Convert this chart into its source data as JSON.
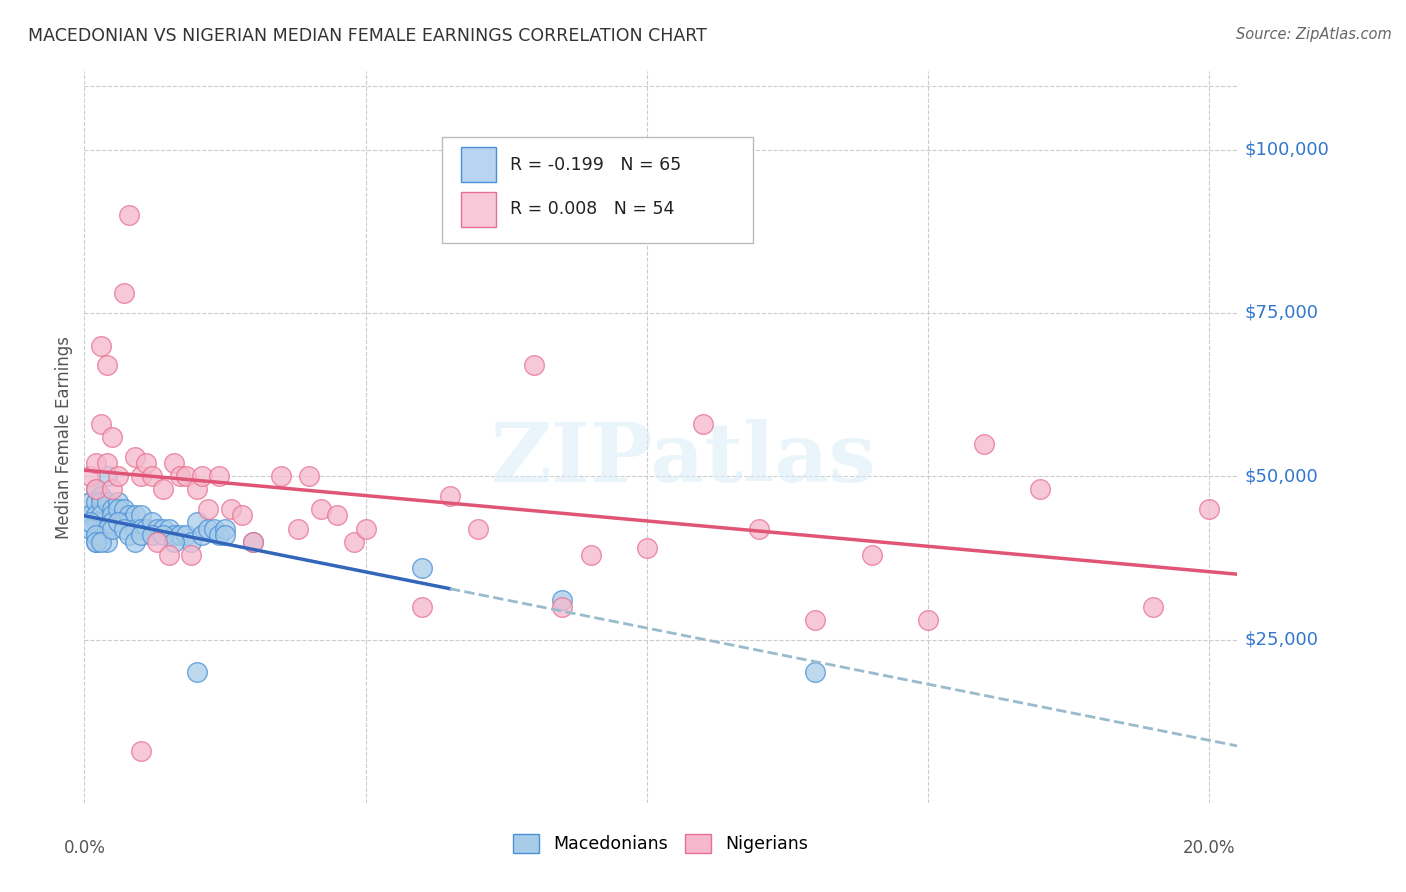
{
  "title": "MACEDONIAN VS NIGERIAN MEDIAN FEMALE EARNINGS CORRELATION CHART",
  "source": "Source: ZipAtlas.com",
  "ylabel": "Median Female Earnings",
  "ytick_labels": [
    "$25,000",
    "$50,000",
    "$75,000",
    "$100,000"
  ],
  "ytick_values": [
    25000,
    50000,
    75000,
    100000
  ],
  "ymin": 0,
  "ymax": 112000,
  "xmin": 0.0,
  "xmax": 0.205,
  "xtick_positions": [
    0.0,
    0.05,
    0.1,
    0.15,
    0.2
  ],
  "xtick_labels": [
    "0.0%",
    "",
    "",
    "",
    "20.0%"
  ],
  "legend_mac": "R = -0.199   N = 65",
  "legend_nig": "R = 0.008   N = 54",
  "mac_color": "#a8cce8",
  "nig_color": "#f5b8cc",
  "mac_edge_color": "#4a90d9",
  "nig_edge_color": "#e87090",
  "mac_line_color": "#3366bb",
  "nig_line_color": "#e05575",
  "dash_color": "#99bbcc",
  "watermark": "ZIPatlas",
  "background_color": "#ffffff",
  "grid_color": "#cccccc",
  "legend_box_mac": "#b8d4f0",
  "legend_box_nig": "#f8c8d8",
  "ytick_color": "#3377cc",
  "title_color": "#333333",
  "source_color": "#666666",
  "ylabel_color": "#555555",
  "mac_x": [
    0.001,
    0.001,
    0.002,
    0.002,
    0.002,
    0.002,
    0.003,
    0.003,
    0.003,
    0.004,
    0.004,
    0.005,
    0.005,
    0.005,
    0.006,
    0.006,
    0.007,
    0.007,
    0.008,
    0.008,
    0.009,
    0.009,
    0.01,
    0.01,
    0.011,
    0.012,
    0.013,
    0.014,
    0.015,
    0.016,
    0.017,
    0.018,
    0.019,
    0.02,
    0.021,
    0.022,
    0.023,
    0.024,
    0.025,
    0.002,
    0.002,
    0.003,
    0.003,
    0.004,
    0.004,
    0.001,
    0.001,
    0.002,
    0.002,
    0.003,
    0.005,
    0.006,
    0.007,
    0.008,
    0.009,
    0.01,
    0.012,
    0.014,
    0.016,
    0.02,
    0.025,
    0.03,
    0.06,
    0.085,
    0.13
  ],
  "mac_y": [
    46000,
    44000,
    48000,
    46000,
    44000,
    43000,
    47000,
    46000,
    44000,
    50000,
    46000,
    45000,
    44000,
    43000,
    46000,
    45000,
    45000,
    43000,
    44000,
    43000,
    44000,
    42000,
    44000,
    42000,
    42000,
    43000,
    42000,
    42000,
    42000,
    41000,
    41000,
    41000,
    40000,
    43000,
    41000,
    42000,
    42000,
    41000,
    42000,
    40000,
    41000,
    41000,
    42000,
    42000,
    40000,
    42000,
    43000,
    41000,
    40000,
    40000,
    42000,
    43000,
    42000,
    41000,
    40000,
    41000,
    41000,
    41000,
    40000,
    20000,
    41000,
    40000,
    36000,
    31000,
    20000
  ],
  "nig_x": [
    0.001,
    0.002,
    0.002,
    0.003,
    0.003,
    0.004,
    0.004,
    0.005,
    0.005,
    0.006,
    0.007,
    0.008,
    0.009,
    0.01,
    0.011,
    0.012,
    0.013,
    0.014,
    0.015,
    0.016,
    0.017,
    0.018,
    0.019,
    0.02,
    0.021,
    0.022,
    0.024,
    0.026,
    0.028,
    0.03,
    0.035,
    0.038,
    0.04,
    0.042,
    0.045,
    0.048,
    0.05,
    0.06,
    0.065,
    0.07,
    0.08,
    0.085,
    0.09,
    0.1,
    0.11,
    0.12,
    0.13,
    0.14,
    0.15,
    0.16,
    0.17,
    0.19,
    0.2,
    0.01
  ],
  "nig_y": [
    50000,
    52000,
    48000,
    70000,
    58000,
    67000,
    52000,
    56000,
    48000,
    50000,
    78000,
    90000,
    53000,
    50000,
    52000,
    50000,
    40000,
    48000,
    38000,
    52000,
    50000,
    50000,
    38000,
    48000,
    50000,
    45000,
    50000,
    45000,
    44000,
    40000,
    50000,
    42000,
    50000,
    45000,
    44000,
    40000,
    42000,
    30000,
    47000,
    42000,
    67000,
    30000,
    38000,
    39000,
    58000,
    42000,
    28000,
    38000,
    28000,
    55000,
    48000,
    30000,
    45000,
    8000
  ]
}
